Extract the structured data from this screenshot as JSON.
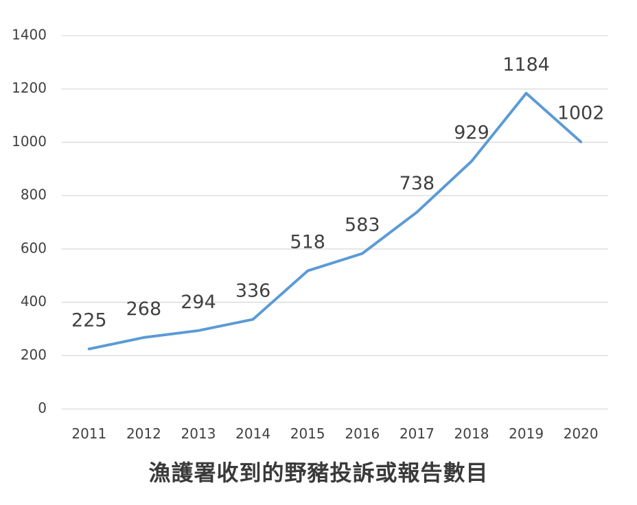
{
  "chart_data": {
    "type": "line",
    "title": "漁護署收到的野豬投訴或報告數目",
    "xlabel": "",
    "ylabel": "",
    "categories": [
      "2011",
      "2012",
      "2013",
      "2014",
      "2015",
      "2016",
      "2017",
      "2018",
      "2019",
      "2020"
    ],
    "series": [
      {
        "values": [
          225,
          268,
          294,
          336,
          518,
          583,
          738,
          929,
          1184,
          1002
        ]
      }
    ],
    "data_labels": [
      "225",
      "268",
      "294",
      "336",
      "518",
      "583",
      "738",
      "929",
      "1184",
      "1002"
    ],
    "yticks": [
      "0",
      "200",
      "400",
      "600",
      "800",
      "1000",
      "1200",
      "1400"
    ],
    "ylim": [
      0,
      1400
    ],
    "grid": true,
    "legend": "none",
    "line_color": "#5b9bd5"
  }
}
